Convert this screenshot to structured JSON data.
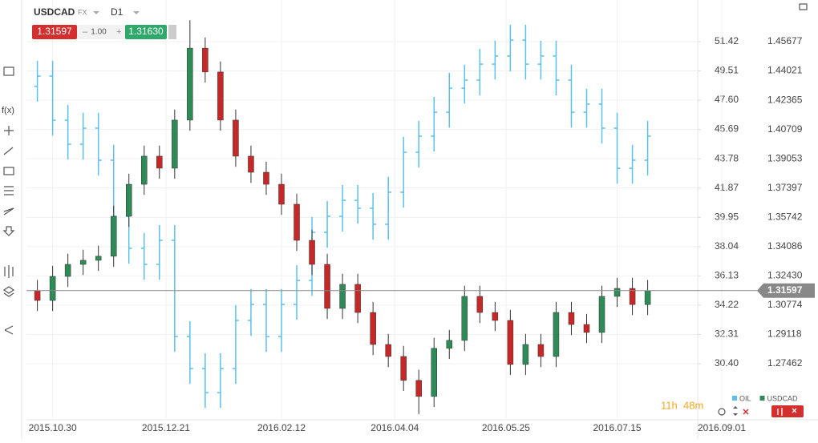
{
  "header": {
    "symbol": "USDCAD",
    "market": "FX",
    "timeframe": "D1",
    "bid": "1.31597",
    "spread": "1.00",
    "ask": "1.31630",
    "fx_icon": "f(x)"
  },
  "timer": {
    "hours": "11h",
    "minutes": "48m"
  },
  "chart_data": {
    "type": "candlestick",
    "x": [
      "2015.10.23",
      "2015.10.30",
      "2015.11.06",
      "2015.11.13",
      "2015.11.20",
      "2015.11.27",
      "2015.12.04",
      "2015.12.11",
      "2015.12.18",
      "2015.12.25",
      "2016.01.01",
      "2016.01.08",
      "2016.01.15",
      "2016.01.22",
      "2016.01.29",
      "2016.02.05",
      "2016.02.12",
      "2016.02.19",
      "2016.02.26",
      "2016.03.04",
      "2016.03.11",
      "2016.03.18",
      "2016.03.25",
      "2016.04.01",
      "2016.04.08",
      "2016.04.15",
      "2016.04.22",
      "2016.04.29",
      "2016.05.06",
      "2016.05.13",
      "2016.05.20",
      "2016.05.27",
      "2016.06.03",
      "2016.06.10",
      "2016.06.17",
      "2016.06.24",
      "2016.07.01",
      "2016.07.08",
      "2016.07.15",
      "2016.07.22",
      "2016.07.29"
    ],
    "xlim": [
      "2015.10.18",
      "2016.09.01"
    ],
    "xticks": [
      "2015.10.30",
      "2015.12.21",
      "2016.02.12",
      "2016.04.04",
      "2016.05.25",
      "2016.07.15",
      "2016.09.01"
    ],
    "ylim": [
      26.95,
      53.09
    ],
    "yticks": [
      51.42,
      49.51,
      {
        "value": 47.6,
        "label": "47.60"
      },
      45.69,
      43.78,
      41.87,
      39.95,
      38.04,
      36.13,
      34.22,
      32.31,
      {
        "value": 30.4,
        "label": "30.40"
      }
    ],
    "y2lim": [
      1.24472,
      1.47127
    ],
    "y2ticks": [
      1.45677,
      1.44021,
      1.42365,
      1.40709,
      1.39053,
      1.37397,
      1.35742,
      1.34086,
      {
        "value": 1.3243,
        "label": "1.32430"
      },
      1.30774,
      1.29118,
      1.27462
    ],
    "grid": true,
    "current_price": 1.31597,
    "series": [
      {
        "name": "OIL",
        "kind": "ohlc",
        "axis": "y",
        "color": "#5bc0eb",
        "open": [
          48.5,
          49.17,
          46.29,
          44.72,
          45.77,
          43.68,
          40.02,
          37.93,
          36.88,
          38.45,
          32.17,
          30.08,
          28.51,
          30.08,
          33.22,
          34.27,
          32.17,
          34.27,
          35.83,
          38.97,
          40.02,
          41.06,
          40.54,
          39.5,
          41.59,
          44.2,
          45.25,
          46.81,
          48.38,
          48.91,
          49.95,
          50.48,
          51.52,
          49.95,
          50.48,
          48.91,
          46.81,
          47.34,
          45.77,
          43.15,
          43.68
        ],
        "high": [
          50.17,
          50.17,
          47.29,
          46.77,
          46.77,
          44.68,
          41.02,
          38.93,
          39.45,
          39.45,
          33.17,
          31.08,
          31.08,
          34.22,
          35.27,
          35.27,
          35.27,
          36.83,
          39.97,
          41.02,
          42.06,
          42.06,
          41.54,
          42.59,
          45.2,
          46.25,
          47.81,
          49.38,
          49.91,
          50.95,
          51.48,
          52.52,
          52.52,
          51.48,
          51.48,
          49.91,
          48.34,
          48.34,
          46.77,
          44.68,
          46.25
        ],
        "low": [
          47.5,
          45.29,
          43.72,
          43.72,
          42.68,
          39.02,
          36.93,
          35.88,
          35.88,
          31.17,
          29.08,
          27.51,
          27.51,
          29.08,
          32.22,
          31.17,
          31.17,
          33.27,
          34.83,
          37.97,
          39.02,
          39.54,
          38.5,
          38.5,
          40.59,
          43.2,
          44.25,
          45.81,
          47.38,
          47.91,
          48.95,
          49.48,
          48.95,
          48.95,
          47.91,
          45.81,
          45.81,
          44.77,
          42.15,
          42.15,
          42.68
        ],
        "close": [
          49.17,
          46.29,
          44.72,
          45.77,
          43.68,
          40.02,
          37.93,
          36.88,
          38.45,
          32.17,
          30.08,
          28.51,
          30.08,
          33.22,
          34.27,
          32.17,
          34.27,
          35.83,
          38.97,
          40.02,
          41.06,
          40.54,
          39.5,
          41.59,
          44.2,
          45.25,
          46.81,
          48.38,
          48.91,
          49.95,
          50.48,
          51.52,
          49.95,
          50.48,
          48.91,
          46.81,
          47.34,
          45.77,
          43.15,
          43.68,
          45.25
        ]
      },
      {
        "name": "USDCAD",
        "kind": "candle",
        "axis": "y2",
        "color": "#2e8b57",
        "down_color": "#c62828",
        "open": [
          1.316,
          1.3104,
          1.324,
          1.3308,
          1.3331,
          1.3354,
          1.358,
          1.3761,
          1.392,
          1.3852,
          1.4124,
          1.4531,
          1.4396,
          1.4124,
          1.392,
          1.3829,
          1.3761,
          1.3648,
          1.3444,
          1.3308,
          1.3059,
          1.3195,
          1.3036,
          1.2855,
          1.2787,
          1.2652,
          1.2561,
          1.2833,
          1.2878,
          1.3127,
          1.3036,
          1.2991,
          1.2742,
          1.2855,
          1.2787,
          1.3036,
          1.2968,
          1.2923,
          1.3127,
          1.3172,
          1.3081
        ],
        "high": [
          1.322,
          1.33,
          1.3368,
          1.3391,
          1.3414,
          1.364,
          1.3821,
          1.398,
          1.398,
          1.4184,
          1.4689,
          1.4591,
          1.4456,
          1.4184,
          1.398,
          1.3889,
          1.3821,
          1.3708,
          1.3504,
          1.3368,
          1.3255,
          1.3255,
          1.3096,
          1.2915,
          1.2847,
          1.2712,
          1.2893,
          1.2938,
          1.3187,
          1.3187,
          1.3096,
          1.3051,
          1.2915,
          1.2915,
          1.3096,
          1.3096,
          1.3028,
          1.3187,
          1.3232,
          1.3232,
          1.322
        ],
        "low": [
          1.3044,
          1.3044,
          1.318,
          1.3248,
          1.3271,
          1.3294,
          1.352,
          1.3701,
          1.3792,
          1.3792,
          1.4064,
          1.4336,
          1.4064,
          1.386,
          1.3769,
          1.3701,
          1.3588,
          1.3384,
          1.3248,
          1.2999,
          1.2999,
          1.2976,
          1.2795,
          1.2727,
          1.2592,
          1.2461,
          1.2501,
          1.2773,
          1.2818,
          1.2976,
          1.2931,
          1.2682,
          1.2682,
          1.2727,
          1.2727,
          1.2908,
          1.2863,
          1.2863,
          1.3067,
          1.3021,
          1.3021
        ],
        "close": [
          1.3104,
          1.324,
          1.3308,
          1.3331,
          1.3354,
          1.358,
          1.3761,
          1.392,
          1.3852,
          1.4124,
          1.4531,
          1.4396,
          1.4124,
          1.392,
          1.3829,
          1.3761,
          1.3648,
          1.3444,
          1.3308,
          1.3059,
          1.3195,
          1.3036,
          1.2855,
          1.2787,
          1.2652,
          1.2561,
          1.2833,
          1.2878,
          1.3127,
          1.3036,
          1.2991,
          1.2742,
          1.2855,
          1.2787,
          1.3036,
          1.2968,
          1.2923,
          1.3127,
          1.3172,
          1.3081,
          1.31597
        ]
      }
    ]
  }
}
